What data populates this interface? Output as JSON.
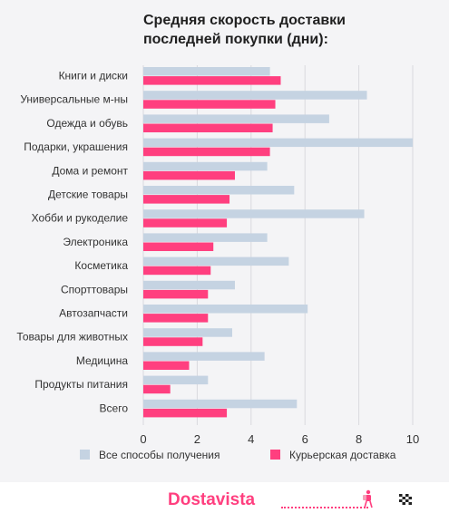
{
  "chart_data": {
    "type": "bar",
    "orientation": "horizontal",
    "title_lines": [
      "Средняя скорость доставки",
      "последней покупки (дни):"
    ],
    "categories": [
      "Книги и диски",
      "Универсальные м-ны",
      "Одежда и обувь",
      "Подарки, украшения",
      "Дома и ремонт",
      "Детские товары",
      "Хобби и рукоделие",
      "Электроника",
      "Косметика",
      "Спорттовары",
      "Автозапчасти",
      "Товары для животных",
      "Медицина",
      "Продукты питания",
      "Всего"
    ],
    "series": [
      {
        "name": "Все способы получения",
        "color": "#c5d3e2",
        "values": [
          4.7,
          8.3,
          6.9,
          10.0,
          4.6,
          5.6,
          8.2,
          4.6,
          5.4,
          3.4,
          6.1,
          3.3,
          4.5,
          2.4,
          5.7
        ]
      },
      {
        "name": "Курьерская доставка",
        "color": "#ff3f7f",
        "values": [
          5.1,
          4.9,
          4.8,
          4.7,
          3.4,
          3.2,
          3.1,
          2.6,
          2.5,
          2.4,
          2.4,
          2.2,
          1.7,
          1.0,
          3.1
        ]
      }
    ],
    "xlim": [
      0,
      10
    ],
    "xticks": [
      "0",
      "2",
      "4",
      "6",
      "8",
      "10"
    ],
    "grid": "vertical",
    "legend_position": "bottom"
  },
  "footer": {
    "brand": "Dostavista",
    "icons": [
      "courier-icon",
      "finish-flag-icon"
    ]
  }
}
